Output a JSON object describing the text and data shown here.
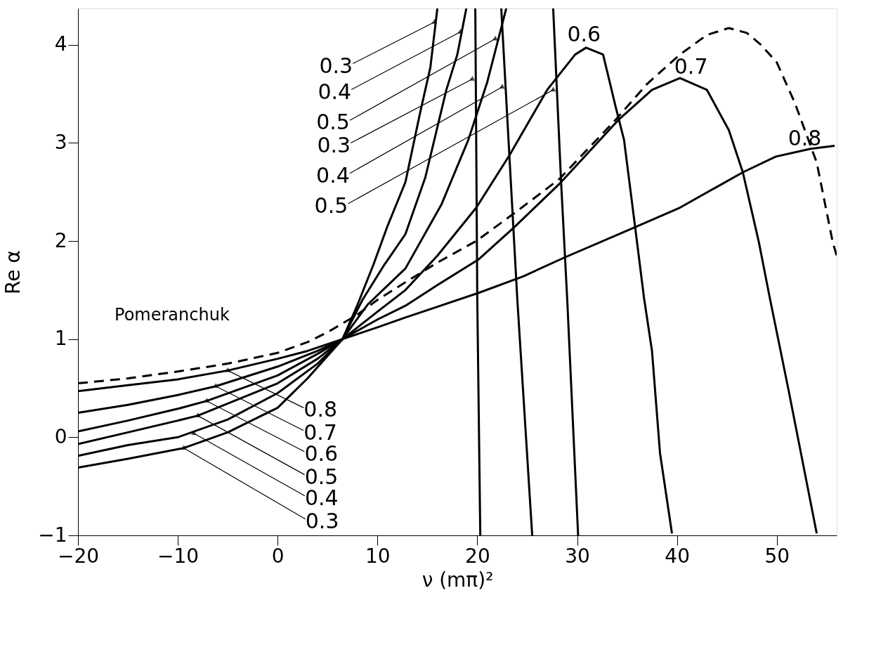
{
  "chart_data": {
    "type": "line",
    "xlabel": "ν  (mπ)²",
    "ylabel": "Re α",
    "xlim": [
      -20,
      56
    ],
    "ylim": [
      -1,
      4.37
    ],
    "xticks": [
      -20,
      -10,
      0,
      10,
      20,
      30,
      40,
      50
    ],
    "yticks": [
      -1,
      0,
      1,
      2,
      3,
      4
    ],
    "grid": false,
    "marker": "none",
    "series": [
      {
        "color": "#000000",
        "line_style": "dashed",
        "x": [
          -20,
          -15,
          -10,
          -5,
          0,
          3,
          5,
          8,
          10,
          12.8,
          16,
          19.9,
          23.8,
          28.2,
          33.9,
          37,
          40.3,
          43,
          45.2,
          47,
          48.4,
          50,
          51.8,
          54,
          55.6,
          56
        ],
        "values": [
          0.55,
          0.6,
          0.67,
          0.75,
          0.86,
          0.97,
          1.07,
          1.25,
          1.4,
          1.58,
          1.78,
          2.0,
          2.29,
          2.63,
          3.24,
          3.6,
          3.9,
          4.1,
          4.17,
          4.12,
          4.0,
          3.82,
          3.41,
          2.8,
          1.99,
          1.85
        ]
      },
      {
        "color": "#000000",
        "line_style": "solid",
        "x": [
          -20,
          -15,
          -10,
          -5,
          0,
          3,
          6.5,
          10,
          12.8,
          16,
          20.1,
          24.6,
          28.7,
          35.8,
          40.3,
          43.8,
          46.6,
          49.9,
          53.4,
          55.8
        ],
        "values": [
          0.47,
          0.53,
          0.59,
          0.68,
          0.8,
          0.88,
          1.0,
          1.12,
          1.22,
          1.33,
          1.47,
          1.64,
          1.83,
          2.14,
          2.34,
          2.54,
          2.7,
          2.86,
          2.94,
          2.97
        ]
      },
      {
        "color": "#000000",
        "line_style": "solid",
        "x": [
          -20,
          -15,
          -10,
          -6.2,
          0,
          4,
          6.5,
          10,
          12.8,
          16,
          20.1,
          23.8,
          28.3,
          34.2,
          37.5,
          40.3,
          43,
          45.2,
          46.6,
          48.2,
          49.3,
          51.2,
          54.0
        ],
        "values": [
          0.25,
          0.33,
          0.43,
          0.52,
          0.72,
          0.88,
          1.0,
          1.2,
          1.34,
          1.55,
          1.81,
          2.15,
          2.59,
          3.24,
          3.54,
          3.66,
          3.54,
          3.13,
          2.7,
          1.99,
          1.42,
          0.47,
          -0.98
        ]
      },
      {
        "color": "#000000",
        "line_style": "solid",
        "x": [
          -20,
          -15,
          -10,
          -7.1,
          0,
          4,
          6.5,
          10,
          12.8,
          16,
          19.9,
          23.2,
          27.0,
          29.8,
          30.9,
          32.6,
          33.9,
          34.7,
          35.8,
          36.7,
          37.5,
          38.3,
          39.5
        ],
        "values": [
          0.06,
          0.17,
          0.29,
          0.37,
          0.63,
          0.85,
          1.0,
          1.28,
          1.5,
          1.85,
          2.34,
          2.87,
          3.54,
          3.9,
          3.97,
          3.9,
          3.35,
          3.03,
          2.15,
          1.42,
          0.88,
          -0.16,
          -0.98
        ]
      },
      {
        "color": "#000000",
        "line_style": "solid",
        "x": [
          -20,
          -15,
          -10,
          -8,
          0,
          4,
          6.5,
          9,
          12.8,
          16.4,
          19.1,
          21.0,
          22.9
        ],
        "values": [
          -0.07,
          0.05,
          0.17,
          0.22,
          0.55,
          0.8,
          1.0,
          1.35,
          1.72,
          2.37,
          3.03,
          3.62,
          4.37
        ]
      },
      {
        "color": "#000000",
        "line_style": "solid",
        "x": [
          -20,
          -15,
          -10,
          -5,
          0,
          4,
          6.5,
          8.5,
          10.7,
          12.8,
          14.8,
          16.9,
          18.0,
          18.9
        ],
        "values": [
          -0.19,
          -0.08,
          0.0,
          0.18,
          0.45,
          0.75,
          1.0,
          1.4,
          1.76,
          2.07,
          2.65,
          3.54,
          3.9,
          4.37
        ]
      },
      {
        "color": "#000000",
        "line_style": "solid",
        "x": [
          -20,
          -15,
          -9.4,
          -5,
          0,
          3,
          6.5,
          8,
          9.6,
          11,
          12.8,
          14.3,
          15.3,
          16.0
        ],
        "values": [
          -0.31,
          -0.22,
          -0.11,
          0.05,
          0.3,
          0.6,
          1.0,
          1.35,
          1.76,
          2.15,
          2.6,
          3.32,
          3.77,
          4.37
        ]
      },
      {
        "color": "#000000",
        "line_style": "solid",
        "x": [
          19.8,
          20.0,
          20.3
        ],
        "values": [
          4.37,
          1.4,
          -1
        ]
      },
      {
        "color": "#000000",
        "line_style": "solid",
        "x": [
          22.4,
          24.0,
          25.5
        ],
        "values": [
          4.37,
          1.42,
          -1
        ]
      },
      {
        "color": "#000000",
        "line_style": "solid",
        "x": [
          27.6,
          28.4,
          29.0,
          30.1
        ],
        "values": [
          4.37,
          2.59,
          1.42,
          -1
        ]
      }
    ],
    "annotations": [
      {
        "text": "0.8",
        "x": -5.0,
        "y": 0.68
      },
      {
        "text": "0.7",
        "x": -6.2,
        "y": 0.52
      },
      {
        "text": "0.6",
        "x": -7.1,
        "y": 0.37
      },
      {
        "text": "0.5",
        "x": -8.0,
        "y": 0.22
      },
      {
        "text": "0.4",
        "x": -8.4,
        "y": 0.04
      },
      {
        "text": "0.3",
        "x": -9.4,
        "y": -0.11
      },
      {
        "text": "0.3",
        "x": 15.7,
        "y": 4.23
      },
      {
        "text": "0.4",
        "x": 18.3,
        "y": 4.13
      },
      {
        "text": "0.5",
        "x": 21.8,
        "y": 4.06
      },
      {
        "text": "0.3",
        "x": 19.5,
        "y": 3.65
      },
      {
        "text": "0.4",
        "x": 22.5,
        "y": 3.57
      },
      {
        "text": "0.5",
        "x": 27.6,
        "y": 3.54
      },
      "0.6",
      "0.7",
      {
        "text": "0.8",
        "x": 52.8,
        "y": 3.04
      },
      "Pomeranchuk"
    ]
  }
}
